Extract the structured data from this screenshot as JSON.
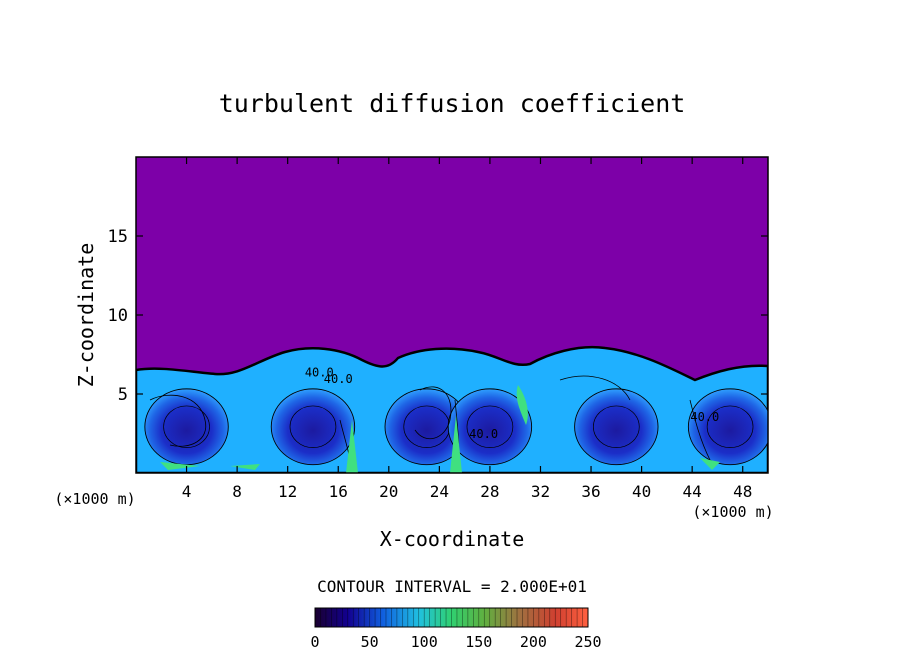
{
  "chart_data": {
    "type": "heatmap",
    "title": "turbulent diffusion coefficient",
    "xlabel": "X-coordinate",
    "ylabel": "Z-coordinate",
    "x_unit": "(×1000 m)",
    "y_unit": "(×1000 m)",
    "xlim": [
      0,
      50
    ],
    "ylim": [
      0,
      20
    ],
    "x_ticks": [
      4,
      8,
      12,
      16,
      20,
      24,
      28,
      32,
      36,
      40,
      44,
      48
    ],
    "y_ticks": [
      5,
      10,
      15
    ],
    "contour_interval_text": "CONTOUR INTERVAL = 2.000E+01",
    "contour_labels": [
      "40.0",
      "40.0",
      "40.0",
      "40.0"
    ],
    "colorbar": {
      "min": 0,
      "max": 250,
      "ticks": [
        0,
        50,
        100,
        150,
        200,
        250
      ]
    },
    "background_value_color": "#7d00a8",
    "boundary_layer_top_km": 6.5,
    "cells": [
      {
        "x_center": 4,
        "value": 40
      },
      {
        "x_center": 14,
        "value": 40
      },
      {
        "x_center": 23,
        "value": 60
      },
      {
        "x_center": 28,
        "value": 40
      },
      {
        "x_center": 38,
        "value": 40
      },
      {
        "x_center": 47,
        "value": 60
      }
    ]
  }
}
